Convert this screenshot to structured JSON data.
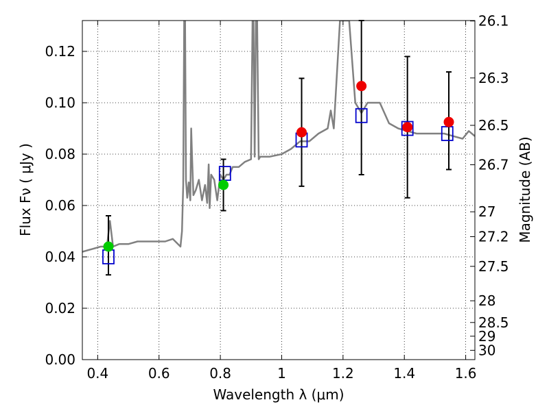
{
  "chart_data": {
    "type": "scatter",
    "xlabel": "Wavelength  λ (μm)",
    "ylabel": "Flux  Fν  ( μJy )",
    "y2label": "Magnitude (AB)",
    "xlim": [
      0.35,
      1.63
    ],
    "ylim": [
      0.0,
      0.132
    ],
    "grid": true,
    "x_ticks": [
      {
        "value": 0.4,
        "label": "0.4"
      },
      {
        "value": 0.6,
        "label": "0.6"
      },
      {
        "value": 0.8,
        "label": "0.8"
      },
      {
        "value": 1.0,
        "label": "1"
      },
      {
        "value": 1.2,
        "label": "1.2"
      },
      {
        "value": 1.4,
        "label": "1.4"
      },
      {
        "value": 1.6,
        "label": "1.6"
      }
    ],
    "y_ticks": [
      {
        "value": 0.0,
        "label": "0.00"
      },
      {
        "value": 0.02,
        "label": "0.02"
      },
      {
        "value": 0.04,
        "label": "0.04"
      },
      {
        "value": 0.06,
        "label": "0.06"
      },
      {
        "value": 0.08,
        "label": "0.08"
      },
      {
        "value": 0.1,
        "label": "0.10"
      },
      {
        "value": 0.12,
        "label": "0.12"
      }
    ],
    "y2_ticks": [
      {
        "value": 26.1,
        "label": "26.1"
      },
      {
        "value": 26.3,
        "label": "26.3"
      },
      {
        "value": 26.5,
        "label": "26.5"
      },
      {
        "value": 26.7,
        "label": "26.7"
      },
      {
        "value": 27.0,
        "label": "27"
      },
      {
        "value": 27.2,
        "label": "27.2"
      },
      {
        "value": 27.5,
        "label": "27.5"
      },
      {
        "value": 28.0,
        "label": "28"
      },
      {
        "value": 28.5,
        "label": "28.5"
      },
      {
        "value": 29.0,
        "label": "29"
      },
      {
        "value": 30.0,
        "label": "30"
      }
    ],
    "colors": {
      "spectrum": "#808080",
      "model_box": "#0000cc",
      "obs_green": "#00cc00",
      "obs_red": "#ee0000",
      "errorbar": "#000000",
      "grid": "#000000"
    },
    "spectrum": {
      "x": [
        0.35,
        0.38,
        0.41,
        0.43,
        0.44,
        0.45,
        0.47,
        0.5,
        0.53,
        0.56,
        0.59,
        0.62,
        0.645,
        0.67,
        0.675,
        0.679,
        0.682,
        0.685,
        0.688,
        0.692,
        0.697,
        0.702,
        0.705,
        0.708,
        0.712,
        0.72,
        0.73,
        0.74,
        0.75,
        0.757,
        0.762,
        0.765,
        0.77,
        0.78,
        0.79,
        0.8,
        0.81,
        0.82,
        0.83,
        0.84,
        0.86,
        0.88,
        0.9,
        0.905,
        0.908,
        0.912,
        0.916,
        0.92,
        0.925,
        0.93,
        0.96,
        1.0,
        1.03,
        1.06,
        1.09,
        1.12,
        1.15,
        1.16,
        1.17,
        1.19,
        1.2,
        1.21,
        1.22,
        1.24,
        1.26,
        1.28,
        1.3,
        1.32,
        1.35,
        1.38,
        1.41,
        1.44,
        1.47,
        1.5,
        1.53,
        1.56,
        1.59,
        1.61,
        1.63
      ],
      "flux": [
        0.042,
        0.043,
        0.044,
        0.044,
        0.054,
        0.044,
        0.045,
        0.045,
        0.046,
        0.046,
        0.046,
        0.046,
        0.047,
        0.044,
        0.05,
        0.068,
        0.132,
        0.132,
        0.07,
        0.063,
        0.069,
        0.062,
        0.09,
        0.078,
        0.064,
        0.066,
        0.07,
        0.062,
        0.068,
        0.061,
        0.076,
        0.059,
        0.072,
        0.07,
        0.062,
        0.072,
        0.07,
        0.072,
        0.072,
        0.075,
        0.075,
        0.077,
        0.078,
        0.132,
        0.132,
        0.079,
        0.132,
        0.132,
        0.078,
        0.079,
        0.079,
        0.08,
        0.082,
        0.085,
        0.085,
        0.088,
        0.09,
        0.097,
        0.09,
        0.132,
        0.132,
        0.132,
        0.132,
        0.1,
        0.096,
        0.1,
        0.1,
        0.1,
        0.092,
        0.09,
        0.089,
        0.088,
        0.088,
        0.088,
        0.088,
        0.087,
        0.086,
        0.089,
        0.087
      ]
    },
    "series": [
      {
        "marker": "circle",
        "color": "#00cc00",
        "points": [
          {
            "x": 0.435,
            "y": 0.044,
            "err_low": 0.033,
            "err_high": 0.056
          },
          {
            "x": 0.81,
            "y": 0.068,
            "err_low": 0.058,
            "err_high": 0.078
          }
        ]
      },
      {
        "marker": "circle",
        "color": "#ee0000",
        "points": [
          {
            "x": 1.065,
            "y": 0.0885,
            "err_low": 0.0675,
            "err_high": 0.1095
          },
          {
            "x": 1.26,
            "y": 0.1065,
            "err_low": 0.072,
            "err_high": 0.132
          },
          {
            "x": 1.41,
            "y": 0.0905,
            "err_low": 0.063,
            "err_high": 0.118
          },
          {
            "x": 1.545,
            "y": 0.0925,
            "err_low": 0.074,
            "err_high": 0.112
          }
        ]
      },
      {
        "marker": "square",
        "color": "#0000cc",
        "points": [
          {
            "x": 0.435,
            "y": 0.04
          },
          {
            "x": 0.815,
            "y": 0.0725
          },
          {
            "x": 1.065,
            "y": 0.0855
          },
          {
            "x": 1.26,
            "y": 0.095
          },
          {
            "x": 1.41,
            "y": 0.09
          },
          {
            "x": 1.54,
            "y": 0.088
          }
        ]
      }
    ]
  }
}
